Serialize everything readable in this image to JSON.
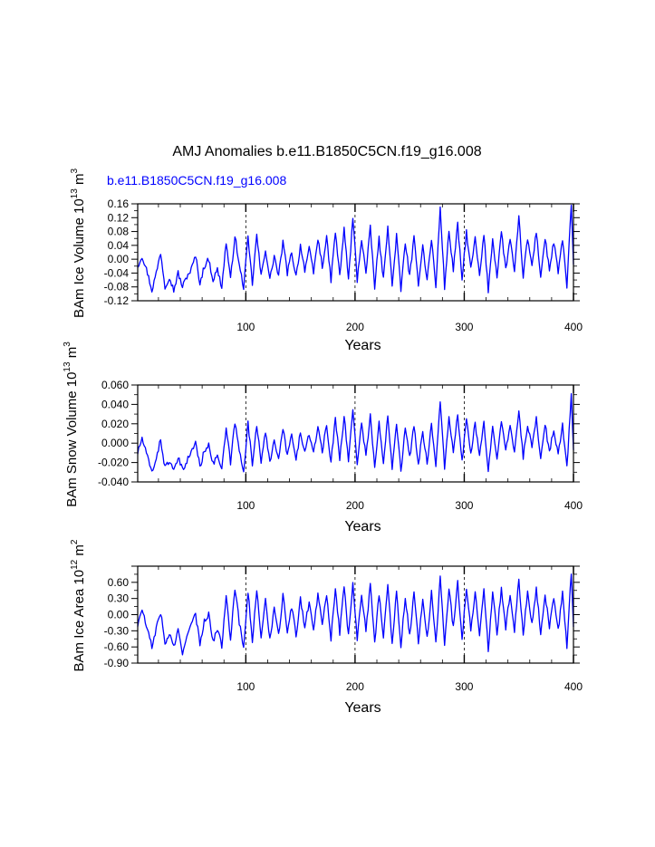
{
  "title": "AMJ Anomalies b.e11.B1850C5CN.f19_g16.008",
  "subtitle": "b.e11.B1850C5CN.f19_g16.008",
  "colors": {
    "series": "#0000ff",
    "subtitle": "#0000ff",
    "axis": "#000000"
  },
  "chart_data": [
    {
      "type": "line",
      "ylabel": "BAm Ice Volume",
      "units": {
        "scale": "10",
        "scale_exp": "13",
        "unit": "m",
        "unit_exp": "3"
      },
      "xlabel": "Years",
      "xlim": [
        1,
        400
      ],
      "ylim": [
        -0.12,
        0.16
      ],
      "xticks": [
        100,
        200,
        300,
        400
      ],
      "xtick_labels": [
        "100",
        "200",
        "300",
        "400"
      ],
      "yticks": [
        -0.12,
        -0.08,
        -0.04,
        0.0,
        0.04,
        0.08,
        0.12,
        0.16
      ],
      "ytick_labels": [
        "-0.12",
        "-0.08",
        "-0.04",
        "0.00",
        "0.04",
        "0.08",
        "0.12",
        "0.16"
      ],
      "vlines": [
        100,
        200,
        300
      ],
      "anchors": [
        [
          1,
          -0.02
        ],
        [
          5,
          0.01
        ],
        [
          10,
          -0.04
        ],
        [
          14,
          -0.09
        ],
        [
          18,
          -0.04
        ],
        [
          22,
          0.02
        ],
        [
          26,
          -0.08
        ],
        [
          30,
          -0.05
        ],
        [
          34,
          -0.09
        ],
        [
          38,
          -0.04
        ],
        [
          42,
          -0.08
        ],
        [
          46,
          -0.05
        ],
        [
          50,
          -0.03
        ],
        [
          54,
          0.01
        ],
        [
          58,
          -0.07
        ],
        [
          62,
          -0.02
        ],
        [
          66,
          0.0
        ],
        [
          70,
          -0.06
        ],
        [
          74,
          -0.03
        ],
        [
          78,
          -0.08
        ],
        [
          82,
          0.05
        ],
        [
          86,
          -0.06
        ],
        [
          90,
          0.07
        ],
        [
          94,
          -0.02
        ],
        [
          98,
          -0.08
        ],
        [
          102,
          0.06
        ],
        [
          106,
          -0.07
        ],
        [
          110,
          0.07
        ],
        [
          114,
          -0.05
        ],
        [
          118,
          0.03
        ],
        [
          122,
          -0.06
        ],
        [
          126,
          0.01
        ],
        [
          130,
          -0.05
        ],
        [
          134,
          0.05
        ],
        [
          138,
          -0.04
        ],
        [
          142,
          0.02
        ],
        [
          146,
          -0.05
        ],
        [
          150,
          0.04
        ],
        [
          154,
          -0.03
        ],
        [
          158,
          0.03
        ],
        [
          162,
          -0.04
        ],
        [
          166,
          0.06
        ],
        [
          170,
          -0.02
        ],
        [
          174,
          0.06
        ],
        [
          178,
          -0.06
        ],
        [
          182,
          0.08
        ],
        [
          186,
          -0.05
        ],
        [
          190,
          0.09
        ],
        [
          194,
          -0.06
        ],
        [
          198,
          0.12
        ],
        [
          202,
          -0.06
        ],
        [
          206,
          0.06
        ],
        [
          210,
          -0.04
        ],
        [
          214,
          0.09
        ],
        [
          218,
          -0.08
        ],
        [
          222,
          0.06
        ],
        [
          226,
          -0.06
        ],
        [
          230,
          0.1
        ],
        [
          234,
          -0.08
        ],
        [
          238,
          0.07
        ],
        [
          242,
          -0.09
        ],
        [
          246,
          0.05
        ],
        [
          250,
          -0.05
        ],
        [
          254,
          0.06
        ],
        [
          258,
          -0.07
        ],
        [
          262,
          0.04
        ],
        [
          266,
          -0.06
        ],
        [
          270,
          0.06
        ],
        [
          274,
          -0.08
        ],
        [
          278,
          0.15
        ],
        [
          282,
          -0.08
        ],
        [
          286,
          0.08
        ],
        [
          290,
          -0.03
        ],
        [
          294,
          0.1
        ],
        [
          298,
          -0.06
        ],
        [
          302,
          0.08
        ],
        [
          306,
          -0.03
        ],
        [
          310,
          0.06
        ],
        [
          314,
          -0.05
        ],
        [
          318,
          0.07
        ],
        [
          322,
          -0.09
        ],
        [
          326,
          0.06
        ],
        [
          330,
          -0.05
        ],
        [
          334,
          0.08
        ],
        [
          338,
          -0.03
        ],
        [
          342,
          0.06
        ],
        [
          346,
          -0.04
        ],
        [
          350,
          0.12
        ],
        [
          354,
          -0.05
        ],
        [
          358,
          0.06
        ],
        [
          362,
          -0.02
        ],
        [
          366,
          0.08
        ],
        [
          370,
          -0.05
        ],
        [
          374,
          0.06
        ],
        [
          378,
          -0.03
        ],
        [
          382,
          0.05
        ],
        [
          386,
          -0.04
        ],
        [
          390,
          0.06
        ],
        [
          394,
          -0.08
        ],
        [
          398,
          0.16
        ],
        [
          400,
          -0.02
        ]
      ]
    },
    {
      "type": "line",
      "ylabel": "BAm Snow Volume",
      "units": {
        "scale": "10",
        "scale_exp": "13",
        "unit": "m",
        "unit_exp": "3"
      },
      "xlabel": "Years",
      "xlim": [
        1,
        400
      ],
      "ylim": [
        -0.04,
        0.06
      ],
      "xticks": [
        100,
        200,
        300,
        400
      ],
      "xtick_labels": [
        "100",
        "200",
        "300",
        "400"
      ],
      "yticks": [
        -0.04,
        -0.02,
        0.0,
        0.02,
        0.04,
        0.06
      ],
      "ytick_labels": [
        "-0.040",
        "-0.020",
        "0.000",
        "0.020",
        "0.040",
        "0.060"
      ],
      "vlines": [
        100,
        200,
        300
      ],
      "anchors": [
        [
          1,
          -0.01
        ],
        [
          5,
          0.005
        ],
        [
          10,
          -0.015
        ],
        [
          14,
          -0.03
        ],
        [
          18,
          -0.015
        ],
        [
          22,
          0.003
        ],
        [
          26,
          -0.025
        ],
        [
          30,
          -0.018
        ],
        [
          34,
          -0.03
        ],
        [
          38,
          -0.015
        ],
        [
          42,
          -0.028
        ],
        [
          46,
          -0.018
        ],
        [
          50,
          -0.01
        ],
        [
          54,
          0.002
        ],
        [
          58,
          -0.025
        ],
        [
          62,
          -0.008
        ],
        [
          66,
          0.0
        ],
        [
          70,
          -0.022
        ],
        [
          74,
          -0.012
        ],
        [
          78,
          -0.028
        ],
        [
          82,
          0.015
        ],
        [
          86,
          -0.02
        ],
        [
          90,
          0.022
        ],
        [
          94,
          -0.008
        ],
        [
          98,
          -0.028
        ],
        [
          102,
          0.02
        ],
        [
          106,
          -0.022
        ],
        [
          110,
          0.02
        ],
        [
          114,
          -0.018
        ],
        [
          118,
          0.01
        ],
        [
          122,
          -0.02
        ],
        [
          126,
          0.005
        ],
        [
          130,
          -0.018
        ],
        [
          134,
          0.015
        ],
        [
          138,
          -0.012
        ],
        [
          142,
          0.008
        ],
        [
          146,
          -0.018
        ],
        [
          150,
          0.012
        ],
        [
          154,
          -0.01
        ],
        [
          158,
          0.01
        ],
        [
          162,
          -0.012
        ],
        [
          166,
          0.018
        ],
        [
          170,
          -0.008
        ],
        [
          174,
          0.018
        ],
        [
          178,
          -0.02
        ],
        [
          182,
          0.025
        ],
        [
          186,
          -0.015
        ],
        [
          190,
          0.028
        ],
        [
          194,
          -0.018
        ],
        [
          198,
          0.035
        ],
        [
          202,
          -0.02
        ],
        [
          206,
          0.02
        ],
        [
          210,
          -0.012
        ],
        [
          214,
          0.028
        ],
        [
          218,
          -0.025
        ],
        [
          222,
          0.02
        ],
        [
          226,
          -0.02
        ],
        [
          230,
          0.03
        ],
        [
          234,
          -0.025
        ],
        [
          238,
          0.022
        ],
        [
          242,
          -0.028
        ],
        [
          246,
          0.015
        ],
        [
          250,
          -0.015
        ],
        [
          254,
          0.018
        ],
        [
          258,
          -0.022
        ],
        [
          262,
          0.012
        ],
        [
          266,
          -0.02
        ],
        [
          270,
          0.02
        ],
        [
          274,
          -0.025
        ],
        [
          278,
          0.045
        ],
        [
          282,
          -0.025
        ],
        [
          286,
          0.025
        ],
        [
          290,
          -0.01
        ],
        [
          294,
          0.03
        ],
        [
          298,
          -0.02
        ],
        [
          302,
          0.025
        ],
        [
          306,
          -0.01
        ],
        [
          310,
          0.02
        ],
        [
          314,
          -0.015
        ],
        [
          318,
          0.022
        ],
        [
          322,
          -0.03
        ],
        [
          326,
          0.02
        ],
        [
          330,
          -0.015
        ],
        [
          334,
          0.025
        ],
        [
          338,
          -0.01
        ],
        [
          342,
          0.02
        ],
        [
          346,
          -0.012
        ],
        [
          350,
          0.035
        ],
        [
          354,
          -0.015
        ],
        [
          358,
          0.02
        ],
        [
          362,
          -0.005
        ],
        [
          366,
          0.025
        ],
        [
          370,
          -0.015
        ],
        [
          374,
          0.02
        ],
        [
          378,
          -0.01
        ],
        [
          382,
          0.015
        ],
        [
          386,
          -0.012
        ],
        [
          390,
          0.018
        ],
        [
          394,
          -0.025
        ],
        [
          398,
          0.05
        ],
        [
          400,
          -0.01
        ]
      ]
    },
    {
      "type": "line",
      "ylabel": "BAm Ice Area",
      "units": {
        "scale": "10",
        "scale_exp": "12",
        "unit": "m",
        "unit_exp": "2"
      },
      "xlabel": "Years",
      "xlim": [
        1,
        400
      ],
      "ylim": [
        -0.9,
        0.9
      ],
      "xticks": [
        100,
        200,
        300,
        400
      ],
      "xtick_labels": [
        "100",
        "200",
        "300",
        "400"
      ],
      "yticks": [
        -0.9,
        -0.6,
        -0.3,
        0.0,
        0.3,
        0.6,
        0.9
      ],
      "ytick_labels": [
        "-0.90",
        "-0.60",
        "-0.30",
        "0.00",
        "0.30",
        "0.60",
        ""
      ],
      "vlines": [
        100,
        200,
        300
      ],
      "anchors": [
        [
          1,
          -0.2
        ],
        [
          5,
          0.1
        ],
        [
          10,
          -0.3
        ],
        [
          14,
          -0.6
        ],
        [
          18,
          -0.25
        ],
        [
          22,
          0.05
        ],
        [
          26,
          -0.55
        ],
        [
          30,
          -0.35
        ],
        [
          34,
          -0.6
        ],
        [
          38,
          -0.3
        ],
        [
          42,
          -0.75
        ],
        [
          46,
          -0.35
        ],
        [
          50,
          -0.2
        ],
        [
          54,
          0.0
        ],
        [
          58,
          -0.55
        ],
        [
          62,
          -0.1
        ],
        [
          66,
          0.0
        ],
        [
          70,
          -0.5
        ],
        [
          74,
          -0.25
        ],
        [
          78,
          -0.6
        ],
        [
          82,
          0.4
        ],
        [
          86,
          -0.45
        ],
        [
          90,
          0.5
        ],
        [
          94,
          -0.15
        ],
        [
          98,
          -0.6
        ],
        [
          102,
          0.45
        ],
        [
          106,
          -0.5
        ],
        [
          110,
          0.45
        ],
        [
          114,
          -0.4
        ],
        [
          118,
          0.25
        ],
        [
          122,
          -0.45
        ],
        [
          126,
          0.1
        ],
        [
          130,
          -0.4
        ],
        [
          134,
          0.35
        ],
        [
          138,
          -0.3
        ],
        [
          142,
          0.15
        ],
        [
          146,
          -0.4
        ],
        [
          150,
          0.3
        ],
        [
          154,
          -0.25
        ],
        [
          158,
          0.25
        ],
        [
          162,
          -0.3
        ],
        [
          166,
          0.4
        ],
        [
          170,
          -0.15
        ],
        [
          174,
          0.4
        ],
        [
          178,
          -0.45
        ],
        [
          182,
          0.5
        ],
        [
          186,
          -0.35
        ],
        [
          190,
          0.55
        ],
        [
          194,
          -0.4
        ],
        [
          198,
          0.6
        ],
        [
          202,
          -0.45
        ],
        [
          206,
          0.4
        ],
        [
          210,
          -0.3
        ],
        [
          214,
          0.55
        ],
        [
          218,
          -0.55
        ],
        [
          222,
          0.4
        ],
        [
          226,
          -0.45
        ],
        [
          230,
          0.6
        ],
        [
          234,
          -0.55
        ],
        [
          238,
          0.45
        ],
        [
          242,
          -0.6
        ],
        [
          246,
          0.35
        ],
        [
          250,
          -0.4
        ],
        [
          254,
          0.4
        ],
        [
          258,
          -0.5
        ],
        [
          262,
          0.3
        ],
        [
          266,
          -0.45
        ],
        [
          270,
          0.4
        ],
        [
          274,
          -0.55
        ],
        [
          278,
          0.7
        ],
        [
          282,
          -0.55
        ],
        [
          286,
          0.5
        ],
        [
          290,
          -0.25
        ],
        [
          294,
          0.6
        ],
        [
          298,
          -0.45
        ],
        [
          302,
          0.5
        ],
        [
          306,
          -0.25
        ],
        [
          310,
          0.4
        ],
        [
          314,
          -0.35
        ],
        [
          318,
          0.45
        ],
        [
          322,
          -0.65
        ],
        [
          326,
          0.4
        ],
        [
          330,
          -0.35
        ],
        [
          334,
          0.5
        ],
        [
          338,
          -0.25
        ],
        [
          342,
          0.4
        ],
        [
          346,
          -0.3
        ],
        [
          350,
          0.65
        ],
        [
          354,
          -0.35
        ],
        [
          358,
          0.4
        ],
        [
          362,
          -0.15
        ],
        [
          366,
          0.5
        ],
        [
          370,
          -0.35
        ],
        [
          374,
          0.4
        ],
        [
          378,
          -0.25
        ],
        [
          382,
          0.35
        ],
        [
          386,
          -0.3
        ],
        [
          390,
          0.4
        ],
        [
          394,
          -0.6
        ],
        [
          398,
          0.8
        ],
        [
          400,
          -0.2
        ]
      ]
    }
  ]
}
